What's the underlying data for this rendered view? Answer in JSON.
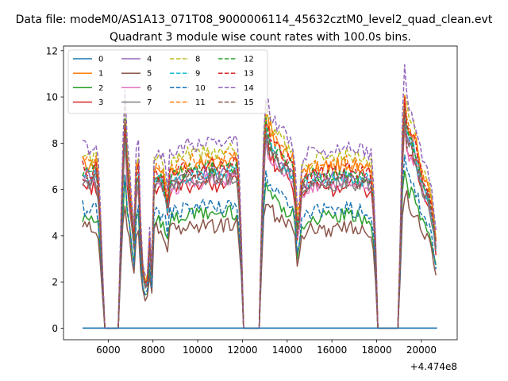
{
  "chart_data": {
    "type": "line",
    "suptitle": "Data file: modeM0/AS1A13_071T08_9000006114_45632cztM0_level2_quad_clean.evt",
    "title": "Quadrant 3 module wise count rates with 100.0s bins.",
    "xlabel": "",
    "ylabel": "",
    "offset_text": "+4.474e8",
    "xlim": [
      4000,
      21600
    ],
    "ylim": [
      -0.5,
      12.2
    ],
    "xticks": [
      6000,
      8000,
      10000,
      12000,
      14000,
      16000,
      18000,
      20000
    ],
    "yticks": [
      0,
      2,
      4,
      6,
      8,
      10,
      12
    ],
    "legend_position": "upper-left",
    "legend_columns": 4,
    "baseline_series": 0,
    "gaps": [
      {
        "start": 5750,
        "end": 6550
      },
      {
        "start": 11950,
        "end": 12850
      },
      {
        "start": 17950,
        "end": 19050
      }
    ],
    "segments": [
      {
        "start": 4850,
        "end": 5750,
        "profile": [
          [
            4850,
            1.0
          ],
          [
            5200,
            0.98
          ],
          [
            5450,
            1.0
          ],
          [
            5600,
            0.85
          ],
          [
            5750,
            0.3
          ]
        ]
      },
      {
        "start": 6550,
        "end": 11950,
        "profile": [
          [
            6550,
            0.5
          ],
          [
            6650,
            1.0
          ],
          [
            6750,
            1.28
          ],
          [
            6850,
            1.05
          ],
          [
            7000,
            0.8
          ],
          [
            7150,
            0.55
          ],
          [
            7250,
            0.95
          ],
          [
            7350,
            1.0
          ],
          [
            7500,
            0.4
          ],
          [
            7650,
            0.28
          ],
          [
            7750,
            0.3
          ],
          [
            7850,
            0.55
          ],
          [
            7950,
            0.35
          ],
          [
            8050,
            0.95
          ],
          [
            8200,
            0.98
          ],
          [
            8500,
            0.93
          ],
          [
            8650,
            0.78
          ],
          [
            8750,
            0.95
          ],
          [
            9100,
            0.97
          ],
          [
            9500,
            1.0
          ],
          [
            10000,
            1.0
          ],
          [
            10500,
            1.02
          ],
          [
            11000,
            1.0
          ],
          [
            11500,
            1.03
          ],
          [
            11800,
            1.02
          ],
          [
            11950,
            0.5
          ]
        ]
      },
      {
        "start": 12850,
        "end": 17950,
        "profile": [
          [
            12850,
            0.6
          ],
          [
            13000,
            1.3
          ],
          [
            13200,
            1.2
          ],
          [
            13500,
            1.12
          ],
          [
            14000,
            1.05
          ],
          [
            14300,
            1.0
          ],
          [
            14450,
            0.65
          ],
          [
            14550,
            0.72
          ],
          [
            14650,
            0.9
          ],
          [
            14800,
            0.95
          ],
          [
            15200,
            0.97
          ],
          [
            15500,
            0.98
          ],
          [
            16000,
            0.97
          ],
          [
            16500,
            1.0
          ],
          [
            17000,
            0.98
          ],
          [
            17500,
            0.97
          ],
          [
            17800,
            0.95
          ],
          [
            17950,
            0.5
          ]
        ]
      },
      {
        "start": 19050,
        "end": 20700,
        "profile": [
          [
            19050,
            0.5
          ],
          [
            19200,
            1.45
          ],
          [
            19400,
            1.2
          ],
          [
            19600,
            1.2
          ],
          [
            19800,
            1.1
          ],
          [
            20000,
            0.95
          ],
          [
            20200,
            0.9
          ],
          [
            20400,
            0.8
          ],
          [
            20600,
            0.6
          ],
          [
            20700,
            0.45
          ]
        ]
      }
    ],
    "series": [
      {
        "name": "0",
        "color": "#1f77b4",
        "dash": false,
        "level": 0.0
      },
      {
        "name": "1",
        "color": "#ff7f0e",
        "dash": false,
        "level": 7.1
      },
      {
        "name": "2",
        "color": "#2ca02c",
        "dash": false,
        "level": 4.9
      },
      {
        "name": "3",
        "color": "#d62728",
        "dash": false,
        "level": 6.2
      },
      {
        "name": "4",
        "color": "#9467bd",
        "dash": false,
        "level": 6.7
      },
      {
        "name": "5",
        "color": "#8c564b",
        "dash": false,
        "level": 4.4
      },
      {
        "name": "6",
        "color": "#e377c2",
        "dash": false,
        "level": 6.3
      },
      {
        "name": "7",
        "color": "#7f7f7f",
        "dash": false,
        "level": 6.4
      },
      {
        "name": "8",
        "color": "#bcbd22",
        "dash": true,
        "level": 7.5
      },
      {
        "name": "9",
        "color": "#17becf",
        "dash": true,
        "level": 6.6
      },
      {
        "name": "10",
        "color": "#1f77b4",
        "dash": true,
        "level": 5.2
      },
      {
        "name": "11",
        "color": "#ff7f0e",
        "dash": true,
        "level": 7.2
      },
      {
        "name": "12",
        "color": "#2ca02c",
        "dash": true,
        "level": 6.8
      },
      {
        "name": "13",
        "color": "#d62728",
        "dash": true,
        "level": 6.9
      },
      {
        "name": "14",
        "color": "#9467bd",
        "dash": true,
        "level": 7.9
      },
      {
        "name": "15",
        "color": "#8c564b",
        "dash": true,
        "level": 6.5
      }
    ]
  }
}
